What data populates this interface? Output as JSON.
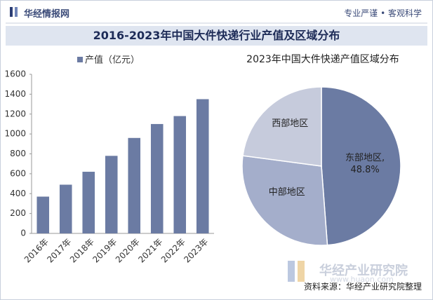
{
  "header": {
    "brand": "华经情报网",
    "motto": "专业严谨 • 客观科学",
    "title": "2016-2023年中国大件快递行业产值及区域分布"
  },
  "footer": {
    "source": "资料来源：华经产业研究院整理",
    "watermark": "华经产业研究院",
    "url": "www.huaon.com"
  },
  "chart_data": [
    {
      "type": "bar",
      "categories": [
        "2016年",
        "2017年",
        "2018年",
        "2019年",
        "2020年",
        "2021年",
        "2022年",
        "2023年"
      ],
      "series": [
        {
          "name": "产值（亿元）",
          "color": "#6b7ba3",
          "values": [
            370,
            490,
            620,
            780,
            960,
            1100,
            1180,
            1350
          ]
        }
      ],
      "ylim": [
        0,
        1600
      ],
      "yticks": [
        0,
        200,
        400,
        600,
        800,
        1000,
        1200,
        1400,
        1600
      ]
    },
    {
      "type": "pie",
      "title": "2023年中国大件快递产值区域分布",
      "categories": [
        "东部地区,",
        "中部地区",
        "西部地区"
      ],
      "values": [
        48.8,
        28.3,
        22.9
      ],
      "value_labels": [
        "48.8%",
        null,
        null
      ],
      "colors": [
        "#6b7ba3",
        "#a4aecb",
        "#c6cbdc"
      ]
    }
  ]
}
